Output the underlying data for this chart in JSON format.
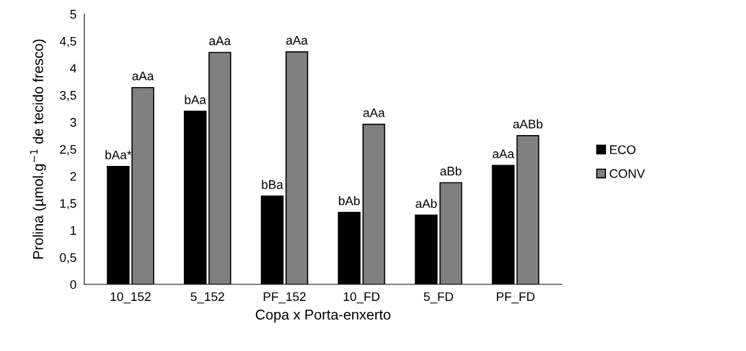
{
  "chart_data": {
    "type": "bar",
    "xlabel": "Copa x Porta-enxerto",
    "ylabel": "Prolina (µmol.g$^{−1}$ de tecido fresco)",
    "categories": [
      "10_152",
      "5_152",
      "PF_152",
      "10_FD",
      "5_FD",
      "PF_FD"
    ],
    "series": [
      {
        "name": "ECO",
        "color": "#000000",
        "values": [
          2.18,
          3.2,
          1.63,
          1.33,
          1.28,
          2.2
        ],
        "value_labels": [
          "bAa*",
          "bAa",
          "bBa",
          "bAb",
          "aAb",
          "aAa"
        ]
      },
      {
        "name": "CONV",
        "color": "#808080",
        "values": [
          3.64,
          4.29,
          4.3,
          2.96,
          1.88,
          2.75
        ],
        "value_labels": [
          "aAa",
          "aAa",
          "aAa",
          "aAa",
          "aBb",
          "aABb"
        ]
      }
    ],
    "ylim": [
      0,
      5
    ],
    "yticks": [
      0,
      {
        "value": 0.5,
        "label": "0,5"
      },
      1,
      {
        "value": 1.5,
        "label": "1,5"
      },
      2,
      {
        "value": 2.5,
        "label": "2,5"
      },
      3,
      {
        "value": 3.5,
        "label": "3,5"
      },
      4,
      {
        "value": 4.5,
        "label": "4,5"
      },
      5
    ],
    "grid": false,
    "legend": "right"
  }
}
